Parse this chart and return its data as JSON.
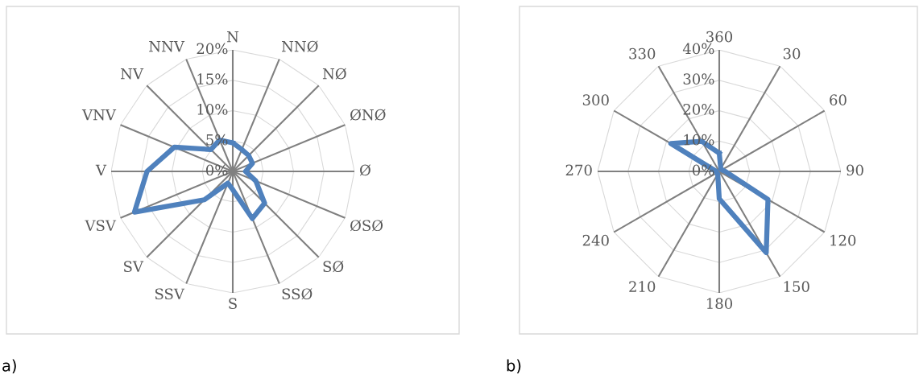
{
  "chart_data": [
    {
      "type": "radar",
      "categories": [
        "N",
        "NNØ",
        "NØ",
        "ØNØ",
        "Ø",
        "ØSØ",
        "SØ",
        "SSØ",
        "S",
        "SSV",
        "SV",
        "VSV",
        "V",
        "VNV",
        "NV",
        "NNV"
      ],
      "series": [
        {
          "color": "#4f81bd",
          "values": [
            4.7,
            3.9,
            3.7,
            3.5,
            2.1,
            4.1,
            7.4,
            8.4,
            3.0,
            2.1,
            6.6,
            17.5,
            14.1,
            10.4,
            5.1,
            5.6
          ]
        }
      ],
      "ylim": [
        0,
        20
      ],
      "yticks": [
        {
          "value": 0,
          "label": "0%"
        },
        {
          "value": 5,
          "label": "5%"
        },
        {
          "value": 10,
          "label": "10%"
        },
        {
          "value": 15,
          "label": "15%"
        },
        {
          "value": 20,
          "label": "20%"
        }
      ],
      "grid": true,
      "line_style": "solid",
      "marker": "none",
      "annotations": [
        "a)"
      ]
    },
    {
      "type": "radar",
      "categories": [
        "360",
        "30",
        "60",
        "90",
        "120",
        "150",
        "180",
        "210",
        "240",
        "270",
        "300",
        "330"
      ],
      "series": [
        {
          "color": "#4f81bd",
          "values": [
            6,
            1,
            1,
            2,
            18.5,
            30.9,
            9,
            1,
            1,
            1,
            18.4,
            11.4
          ]
        }
      ],
      "ylim": [
        0,
        40
      ],
      "yticks": [
        {
          "value": 0,
          "label": "0%"
        },
        {
          "value": 10,
          "label": "10%"
        },
        {
          "value": 20,
          "label": "20%"
        },
        {
          "value": 30,
          "label": "30%"
        },
        {
          "value": 40,
          "label": "40%"
        }
      ],
      "grid": true,
      "line_style": "solid",
      "marker": "none",
      "annotations": [
        "b)"
      ]
    }
  ]
}
